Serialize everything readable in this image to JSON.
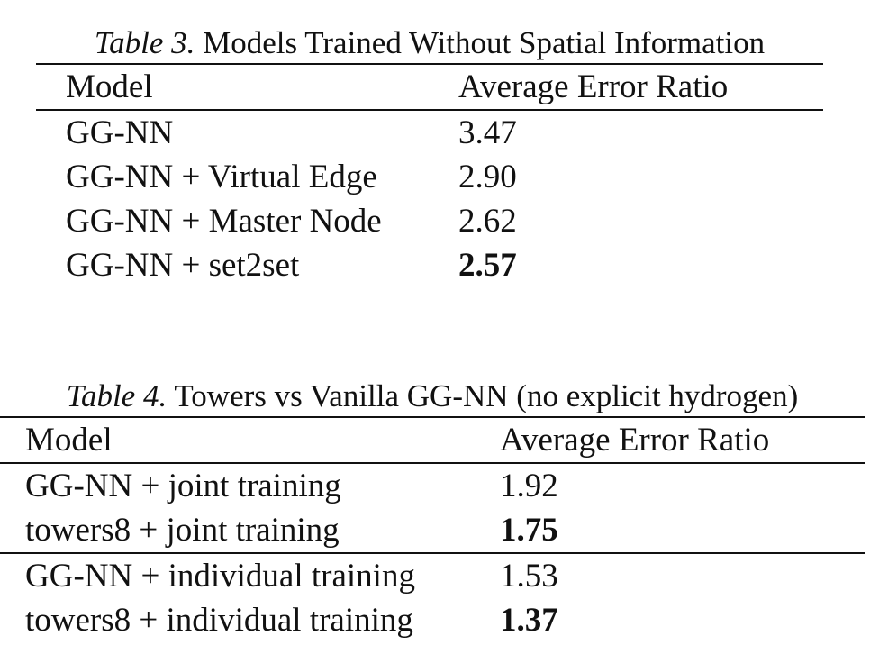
{
  "table3": {
    "caption_label": "Table 3.",
    "caption_text": "Models Trained Without Spatial Information",
    "header": {
      "model": "Model",
      "value": "Average Error Ratio"
    },
    "rows": [
      {
        "model": "GG-NN",
        "value": "3.47",
        "bold": false
      },
      {
        "model": "GG-NN + Virtual Edge",
        "value": "2.90",
        "bold": false
      },
      {
        "model": "GG-NN + Master Node",
        "value": "2.62",
        "bold": false
      },
      {
        "model": "GG-NN + set2set",
        "value": "2.57",
        "bold": true
      }
    ]
  },
  "table4": {
    "caption_label": "Table 4.",
    "caption_text": "Towers vs Vanilla GG-NN (no explicit hydrogen)",
    "header": {
      "model": "Model",
      "value": "Average Error Ratio"
    },
    "group1": [
      {
        "model": "GG-NN + joint training",
        "value": "1.92",
        "bold": false
      },
      {
        "model": "towers8 + joint training",
        "value": "1.75",
        "bold": true
      }
    ],
    "group2": [
      {
        "model": "GG-NN + individual training",
        "value": "1.53",
        "bold": false
      },
      {
        "model": "towers8 + individual training",
        "value": "1.37",
        "bold": true
      }
    ]
  }
}
